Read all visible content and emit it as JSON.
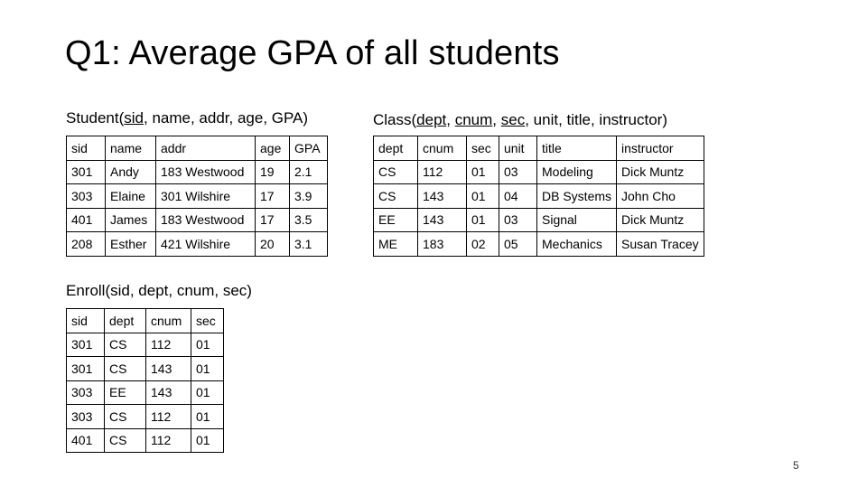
{
  "slide": {
    "title": "Q1: Average GPA of all students",
    "page_number": "5"
  },
  "student": {
    "schema_prefix": "Student(",
    "schema_key": "sid",
    "schema_rest": ", name, addr, age, GPA)",
    "header": [
      "sid",
      "name",
      "addr",
      "age",
      "GPA"
    ],
    "rows": [
      [
        "301",
        "Andy",
        "183 Westwood",
        "19",
        "2.1"
      ],
      [
        "303",
        "Elaine",
        "301 Wilshire",
        "17",
        "3.9"
      ],
      [
        "401",
        "James",
        "183 Westwood",
        "17",
        "3.5"
      ],
      [
        "208",
        "Esther",
        "421 Wilshire",
        "20",
        "3.1"
      ]
    ]
  },
  "class": {
    "schema_prefix": "Class(",
    "schema_key1": "dept",
    "schema_sep1": ", ",
    "schema_key2": "cnum",
    "schema_sep2": ", ",
    "schema_key3": "sec",
    "schema_rest": ", unit, title, instructor)",
    "header": [
      "dept",
      "cnum",
      "sec",
      "unit",
      "title",
      "instructor"
    ],
    "rows": [
      [
        "CS",
        "112",
        "01",
        "03",
        "Modeling",
        "Dick Muntz"
      ],
      [
        "CS",
        "143",
        "01",
        "04",
        "DB Systems",
        "John Cho"
      ],
      [
        "EE",
        "143",
        "01",
        "03",
        "Signal",
        "Dick Muntz"
      ],
      [
        "ME",
        "183",
        "02",
        "05",
        "Mechanics",
        "Susan Tracey"
      ]
    ]
  },
  "enroll": {
    "schema": "Enroll(sid, dept, cnum, sec)",
    "header": [
      "sid",
      "dept",
      "cnum",
      "sec"
    ],
    "rows": [
      [
        "301",
        "CS",
        "112",
        "01"
      ],
      [
        "301",
        "CS",
        "143",
        "01"
      ],
      [
        "303",
        "EE",
        "143",
        "01"
      ],
      [
        "303",
        "CS",
        "112",
        "01"
      ],
      [
        "401",
        "CS",
        "112",
        "01"
      ]
    ]
  }
}
